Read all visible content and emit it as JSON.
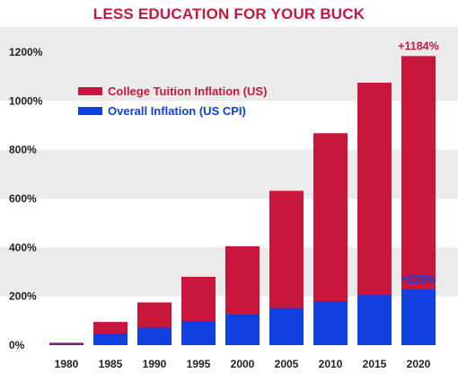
{
  "chart_data": {
    "type": "bar",
    "title": "LESS EDUCATION FOR YOUR BUCK",
    "categories": [
      "1980",
      "1985",
      "1990",
      "1995",
      "2000",
      "2005",
      "2010",
      "2015",
      "2020"
    ],
    "series": [
      {
        "name": "College Tuition Inflation (US)",
        "color": "#c8163c",
        "values": [
          10,
          95,
          175,
          280,
          405,
          632,
          868,
          1075,
          1184
        ]
      },
      {
        "name": "Overall Inflation (US CPI)",
        "color": "#1040e0",
        "values": [
          5,
          48,
          72,
          98,
          125,
          152,
          180,
          205,
          228
        ]
      }
    ],
    "ylim": [
      0,
      1200
    ],
    "yticks": [
      "0%",
      "200%",
      "400%",
      "600%",
      "800%",
      "1000%",
      "1200%"
    ],
    "ytick_values": [
      0,
      200,
      400,
      600,
      800,
      1000,
      1200
    ],
    "annotations": [
      {
        "text": "+1184%",
        "category": "2020",
        "series": 0,
        "color": "#c8163c"
      },
      {
        "text": "+228%",
        "category": "2020",
        "series": 1,
        "color": "#1040e0"
      }
    ],
    "legend_position": "top-left",
    "grid": "alternating horizontal bands",
    "title_color": "#c8163c",
    "band_color": "#ebebeb"
  }
}
